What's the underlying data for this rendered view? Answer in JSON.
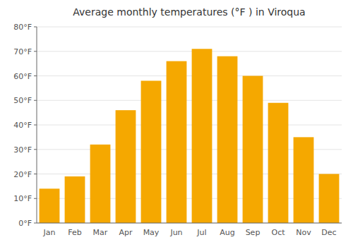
{
  "chart_data": {
    "type": "bar",
    "title": "Average monthly temperatures (°F ) in Viroqua",
    "categories": [
      "Jan",
      "Feb",
      "Mar",
      "Apr",
      "May",
      "Jun",
      "Jul",
      "Aug",
      "Sep",
      "Oct",
      "Nov",
      "Dec"
    ],
    "values": [
      14,
      19,
      32,
      46,
      58,
      66,
      71,
      68,
      60,
      49,
      35,
      20
    ],
    "color": "#F5A800",
    "ylim": [
      0,
      80
    ],
    "yticks": [
      {
        "value": 0,
        "label": "0°F"
      },
      {
        "value": 10,
        "label": "10°F"
      },
      {
        "value": 20,
        "label": "20°F"
      },
      {
        "value": 30,
        "label": "30°F"
      },
      {
        "value": 40,
        "label": "40°F"
      },
      {
        "value": 50,
        "label": "50°F"
      },
      {
        "value": 60,
        "label": "60°F"
      },
      {
        "value": 70,
        "label": "70°F"
      },
      {
        "value": 80,
        "label": "80°F"
      }
    ],
    "grid": true
  }
}
